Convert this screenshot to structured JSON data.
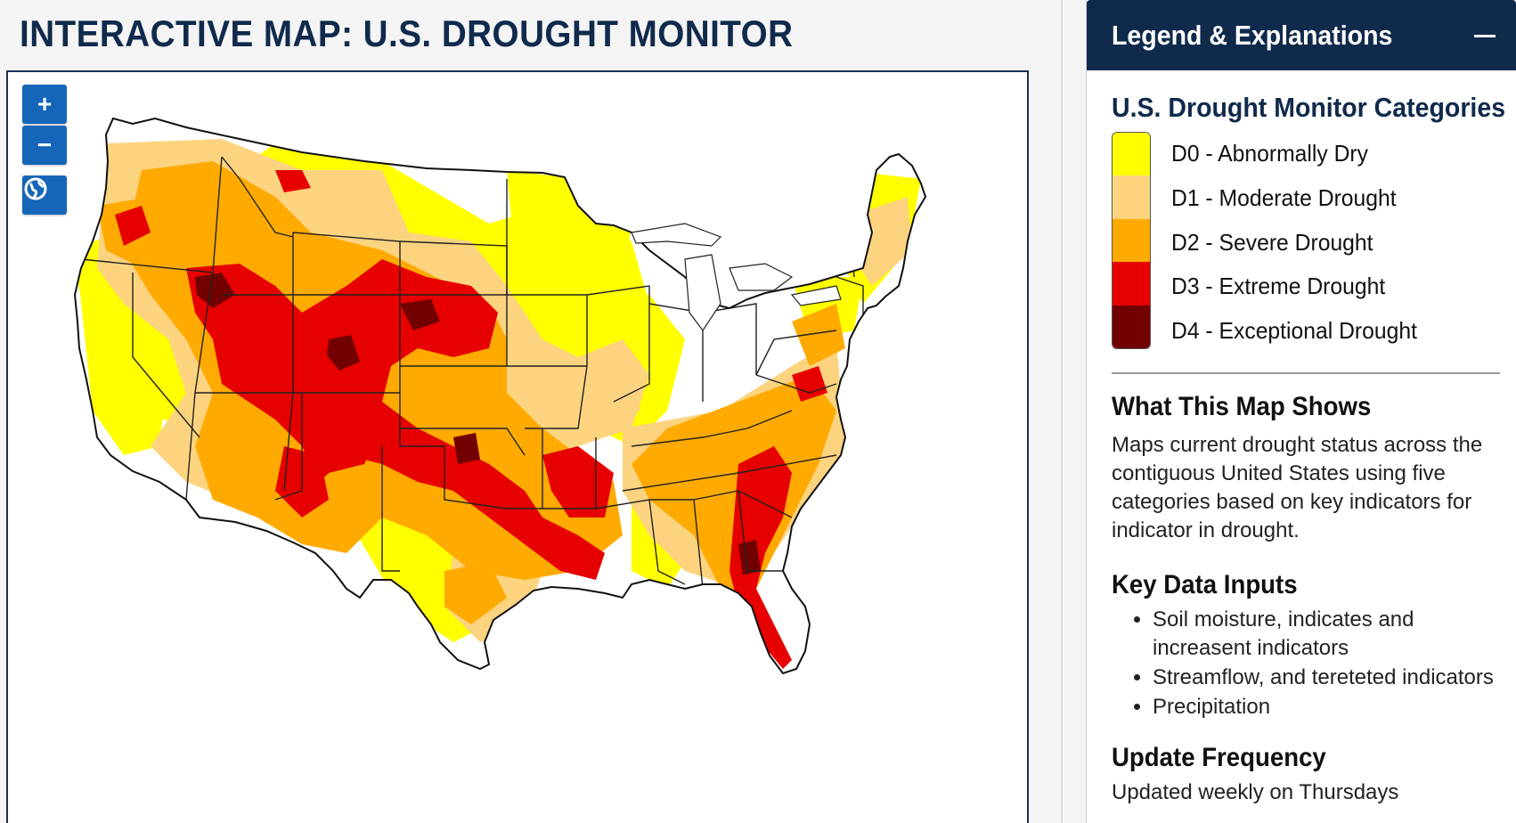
{
  "page": {
    "title": "INTERACTIVE MAP: U.S. DROUGHT MONITOR"
  },
  "map_controls": {
    "zoom_in": "+",
    "zoom_out": "−",
    "reset_icon": "globe-reset-icon"
  },
  "legend_panel": {
    "title": "Legend & Explanations",
    "collapse_icon": "minus-icon",
    "categories_heading": "U.S. Drought Monitor Categories",
    "categories": [
      {
        "label": "D0 - Abnormally Dry",
        "color": "#ffff00"
      },
      {
        "label": "D1 - Moderate Drought",
        "color": "#fcd37f"
      },
      {
        "label": "D2 - Severe Drought",
        "color": "#ffaa00"
      },
      {
        "label": "D3 - Extreme Drought",
        "color": "#e60000"
      },
      {
        "label": "D4 - Exceptional Drought",
        "color": "#730000"
      }
    ],
    "what_heading": "What This Map Shows",
    "what_text": "Maps current drought status across the contiguous United States using five categories based on key indicators for indicator in drought.",
    "inputs_heading": "Key Data Inputs",
    "inputs": [
      "Soil moisture, indicates and increasent indicators",
      "Streamflow, and tereteted indicators",
      "Precipitation"
    ],
    "update_heading": "Update Frequency",
    "update_text": "Updated weekly on Thursdays"
  },
  "colors": {
    "header_navy": "#102a4c",
    "control_blue": "#1566b8",
    "no_drought": "#ffffff"
  }
}
